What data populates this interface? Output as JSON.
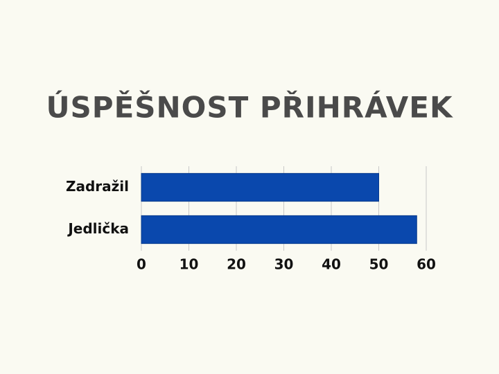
{
  "chart_data": {
    "type": "bar",
    "orientation": "horizontal",
    "title": "ÚSPĚŠNOST PŘIHRÁVEK",
    "categories": [
      "Zadražil",
      "Jedlička"
    ],
    "values": [
      50,
      58
    ],
    "color": "#0a48ad",
    "xlim": [
      0,
      60
    ],
    "xticks": [
      0,
      10,
      20,
      30,
      40,
      50,
      60
    ],
    "grid": true
  }
}
